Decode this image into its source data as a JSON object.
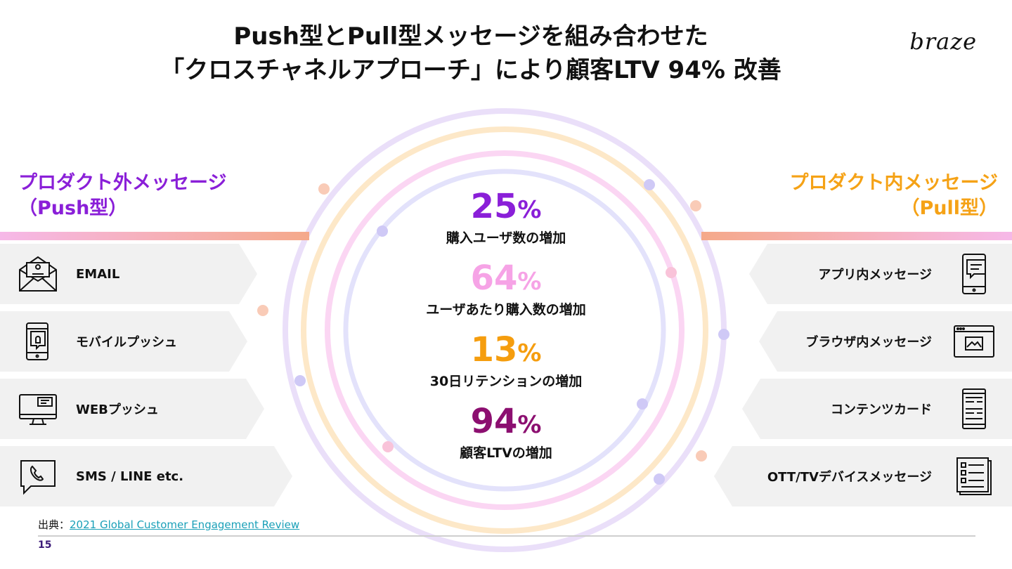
{
  "title": {
    "line1": "Push型とPull型メッセージを組み合わせた",
    "line2": "「クロスチャネルアプローチ」により顧客LTV 94% 改善"
  },
  "logo": "braze",
  "left": {
    "heading_line1": "プロダクト外メッセージ",
    "heading_line2": "（Push型）",
    "color": "#8a1fd8",
    "items": [
      {
        "label": "EMAIL",
        "icon": "envelope-icon"
      },
      {
        "label": "モバイルプッシュ",
        "icon": "mobile-push-icon"
      },
      {
        "label": "WEBプッシュ",
        "icon": "monitor-icon"
      },
      {
        "label": "SMS / LINE etc.",
        "icon": "chat-phone-icon"
      }
    ]
  },
  "right": {
    "heading_line1": "プロダクト内メッセージ",
    "heading_line2": "（Pull型）",
    "color": "#f5a216",
    "items": [
      {
        "label": "アプリ内メッセージ",
        "icon": "phone-message-icon"
      },
      {
        "label": "ブラウザ内メッセージ",
        "icon": "browser-window-icon"
      },
      {
        "label": "コンテンツカード",
        "icon": "content-cards-icon"
      },
      {
        "label": "OTT/TVデバイスメッセージ",
        "icon": "document-list-icon"
      }
    ]
  },
  "stats": [
    {
      "value": "25",
      "unit": "%",
      "label": "購入ユーザ数の増加",
      "color": "#8a1fd8"
    },
    {
      "value": "64",
      "unit": "%",
      "label": "ユーザあたり購入数の増加",
      "color": "#f6a3e6"
    },
    {
      "value": "13",
      "unit": "%",
      "label": "30日リテンションの増加",
      "color": "#f59d0e"
    },
    {
      "value": "94",
      "unit": "%",
      "label": "顧客LTVの増加",
      "color": "#8c0f70"
    }
  ],
  "source": {
    "prefix": "出典：",
    "link_text": "2021 Global Customer Engagement Review"
  },
  "page_number": "15"
}
